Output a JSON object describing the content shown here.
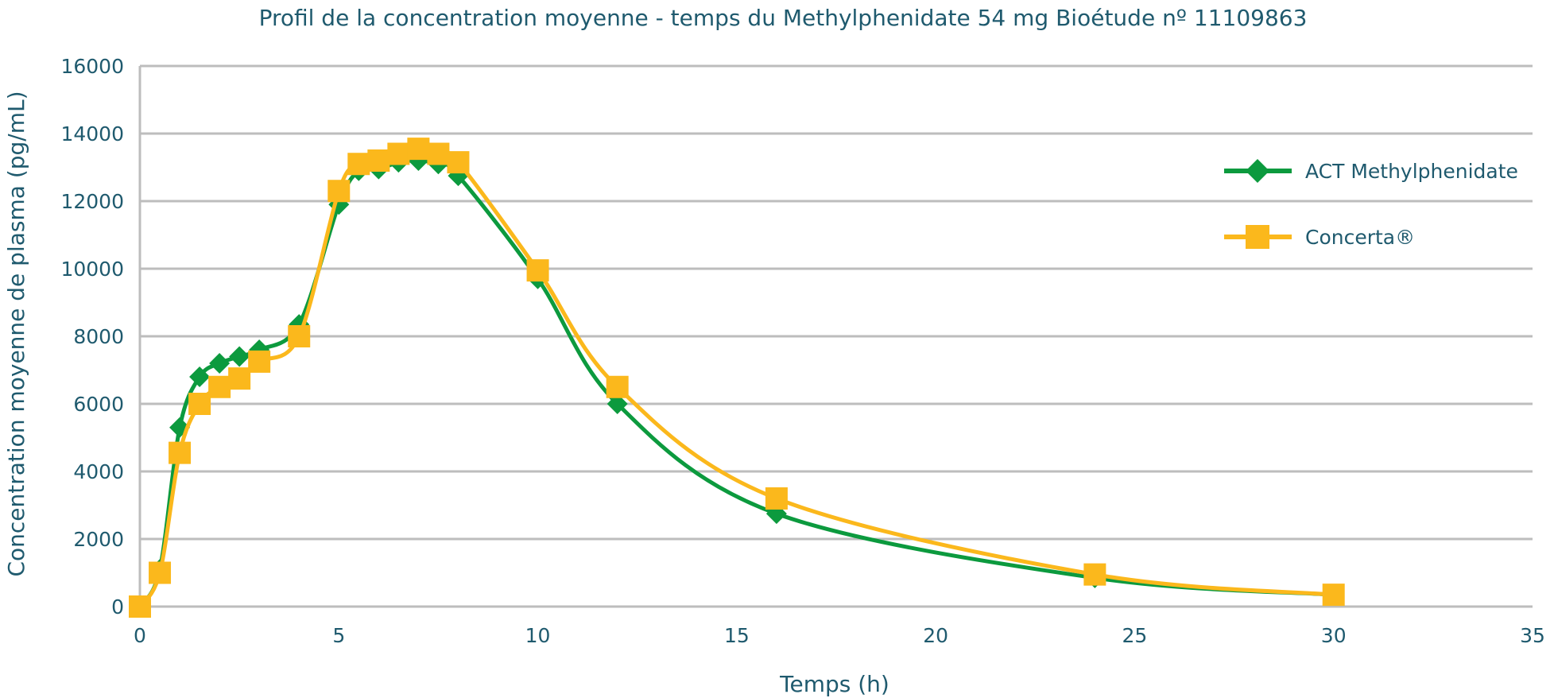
{
  "chart_data": {
    "type": "line",
    "title": "Profil de la concentration moyenne - temps du Methylphenidate 54 mg Bioétude nº 11109863",
    "xlabel": "Temps (h)",
    "ylabel": "Concentration moyenne de plasma (pg/mL)",
    "xlim": [
      0,
      35
    ],
    "ylim": [
      0,
      16000
    ],
    "xticks": [
      0,
      5,
      10,
      15,
      20,
      25,
      30,
      35
    ],
    "yticks": [
      0,
      2000,
      4000,
      6000,
      8000,
      10000,
      12000,
      14000,
      16000
    ],
    "grid": true,
    "legend_position": "right",
    "series": [
      {
        "name": "ACT Methylphenidate",
        "color": "#0c9a3e",
        "marker": "diamond",
        "x": [
          0,
          0.5,
          1,
          1.5,
          2,
          2.5,
          3,
          4,
          5,
          5.5,
          6,
          6.5,
          7,
          7.5,
          8,
          10,
          12,
          16,
          24,
          30
        ],
        "y": [
          0,
          1100,
          5300,
          6800,
          7200,
          7400,
          7600,
          8350,
          11900,
          12900,
          12950,
          13150,
          13200,
          13100,
          12750,
          9700,
          6000,
          2750,
          850,
          350
        ]
      },
      {
        "name": "Concerta®",
        "color": "#fbb81c",
        "marker": "square",
        "x": [
          0,
          0.5,
          1,
          1.5,
          2,
          2.5,
          3,
          4,
          5,
          5.5,
          6,
          6.5,
          7,
          7.5,
          8,
          10,
          12,
          16,
          24,
          30
        ],
        "y": [
          0,
          1000,
          4550,
          6000,
          6500,
          6750,
          7250,
          8000,
          12300,
          13100,
          13200,
          13400,
          13550,
          13400,
          13150,
          9950,
          6500,
          3200,
          950,
          350
        ]
      }
    ]
  }
}
